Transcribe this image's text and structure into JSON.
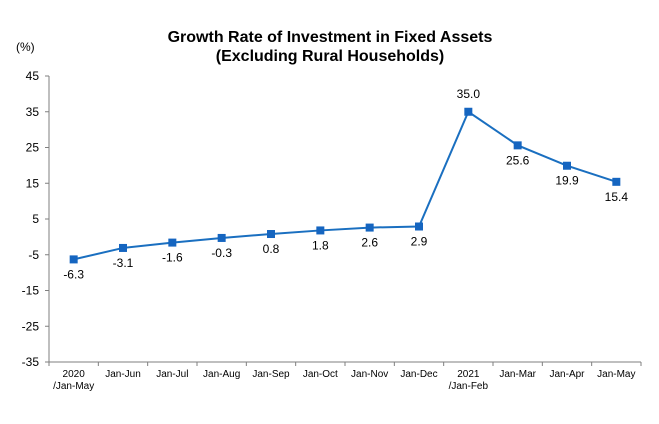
{
  "chart_data": {
    "type": "line",
    "title": "Growth Rate of Investment in Fixed Assets",
    "subtitle": "(Excluding Rural Households)",
    "ylabel": "(%)",
    "xlabel": "",
    "ylim": [
      -35,
      45
    ],
    "yticks": [
      45,
      35,
      25,
      15,
      5,
      -5,
      -15,
      -25,
      -35
    ],
    "grid": false,
    "legend": "none",
    "categories": [
      [
        "2020",
        "/Jan-May"
      ],
      [
        "Jan-Jun"
      ],
      [
        "Jan-Jul"
      ],
      [
        "Jan-Aug"
      ],
      [
        "Jan-Sep"
      ],
      [
        "Jan-Oct"
      ],
      [
        "Jan-Nov"
      ],
      [
        "Jan-Dec"
      ],
      [
        "2021",
        "/Jan-Feb"
      ],
      [
        "Jan-Mar"
      ],
      [
        "Jan-Apr"
      ],
      [
        "Jan-May"
      ]
    ],
    "series": [
      {
        "values": [
          -6.3,
          -3.1,
          -1.6,
          -0.3,
          0.8,
          1.8,
          2.6,
          2.9,
          35.0,
          25.6,
          19.9,
          15.4
        ],
        "labels": [
          "-6.3",
          "-3.1",
          "-1.6",
          "-0.3",
          "0.8",
          "1.8",
          "2.6",
          "2.9",
          "35.0",
          "25.6",
          "19.9",
          "15.4"
        ]
      }
    ],
    "colors": {
      "line": "#1a6fc0",
      "marker": "#1565c0",
      "axis": "#7f7f7f"
    }
  }
}
